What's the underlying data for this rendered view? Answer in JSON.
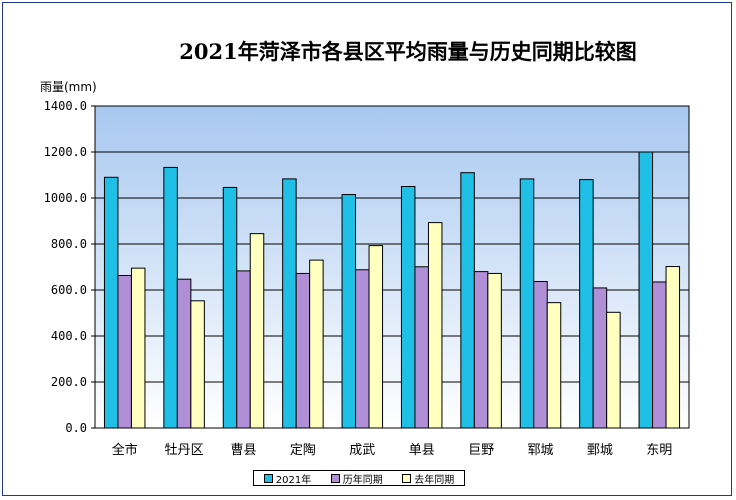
{
  "chart_data": {
    "type": "bar",
    "title": "2021年菏泽市各县区平均雨量与历史同期比较图",
    "ylabel": "雨量(mm)",
    "ylim": [
      0,
      1400
    ],
    "yticks": [
      "0.0",
      "200.0",
      "400.0",
      "600.0",
      "800.0",
      "1000.0",
      "1200.0",
      "1400.0"
    ],
    "grid": true,
    "legend_position": "bottom",
    "categories": [
      "全市",
      "牡丹区",
      "曹县",
      "定陶",
      "成武",
      "单县",
      "巨野",
      "郓城",
      "鄄城",
      "东明"
    ],
    "series": [
      {
        "name": "2021年",
        "color": "#1fbfe6",
        "values": [
          1090,
          1133,
          1046,
          1083,
          1015,
          1050,
          1110,
          1083,
          1080,
          1200
        ]
      },
      {
        "name": "历年同期",
        "color": "#b08fd6",
        "values": [
          663,
          647,
          683,
          672,
          688,
          701,
          680,
          637,
          609,
          635
        ]
      },
      {
        "name": "去年同期",
        "color": "#ffffc0",
        "values": [
          695,
          553,
          845,
          730,
          793,
          893,
          672,
          545,
          503,
          702
        ]
      }
    ]
  }
}
